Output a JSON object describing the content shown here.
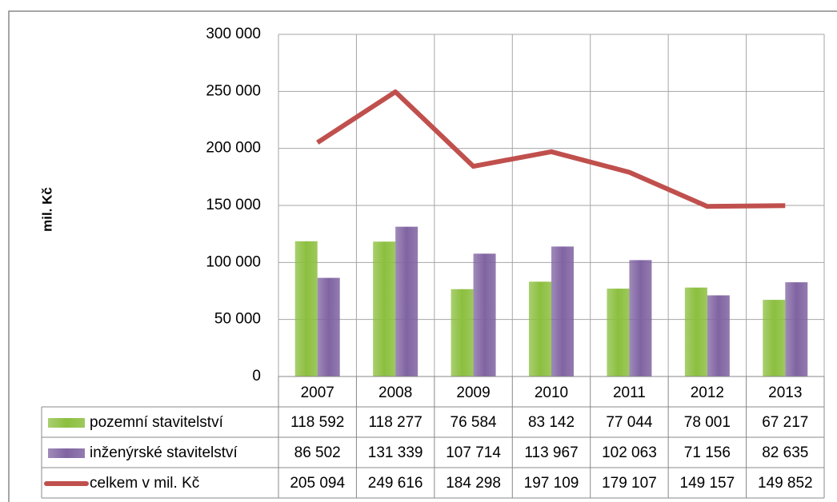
{
  "chart_data": {
    "type": "bar",
    "y_label": "mil. Kč",
    "categories": [
      "2007",
      "2008",
      "2009",
      "2010",
      "2011",
      "2012",
      "2013"
    ],
    "series": [
      {
        "name": "pozemní stavitelství",
        "type": "bar",
        "color": "#8cbf3f",
        "values": [
          118592,
          118277,
          76584,
          83142,
          77044,
          78001,
          67217
        ],
        "value_labels": [
          "118 592",
          "118 277",
          "76 584",
          "83 142",
          "77 044",
          "78 001",
          "67 217"
        ]
      },
      {
        "name": "inženýrské stavitelství",
        "type": "bar",
        "color": "#8064a2",
        "values": [
          86502,
          131339,
          107714,
          113967,
          102063,
          71156,
          82635
        ],
        "value_labels": [
          "86 502",
          "131 339",
          "107 714",
          "113 967",
          "102 063",
          "71 156",
          "82 635"
        ]
      },
      {
        "name": "celkem v mil. Kč",
        "type": "line",
        "color": "#c0504d",
        "values": [
          205094,
          249616,
          184298,
          197109,
          179107,
          149157,
          149852
        ],
        "value_labels": [
          "205 094",
          "249 616",
          "184 298",
          "197 109",
          "179 107",
          "149 157",
          "149 852"
        ]
      }
    ],
    "ylim": [
      0,
      300000
    ],
    "yticks": [
      0,
      {
        "value": 50000,
        "label": "50 000"
      },
      {
        "value": 100000,
        "label": "100 000"
      },
      {
        "value": 150000,
        "label": "150 000"
      },
      {
        "value": 200000,
        "label": "200 000"
      },
      {
        "value": 250000,
        "label": "250 000"
      },
      {
        "value": 300000,
        "label": "300 000"
      }
    ],
    "grid": true,
    "data_table": true
  }
}
